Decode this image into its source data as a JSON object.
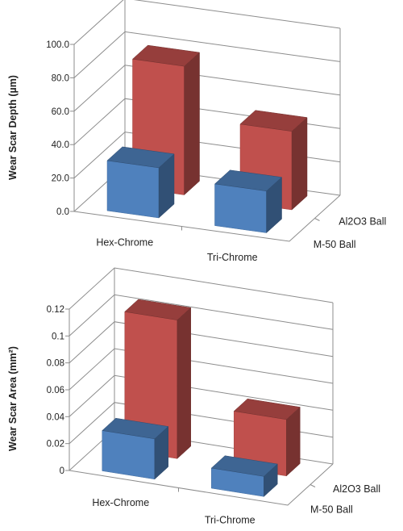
{
  "chart_data": [
    {
      "type": "bar",
      "subtype": "3d-column",
      "categories": [
        "Hex-Chrome",
        "Tri-Chrome"
      ],
      "depth_categories": [
        "M-50 Ball",
        "Al2O3 Ball"
      ],
      "series": [
        {
          "name": "M-50 Ball",
          "color": "#4f81bd",
          "values": [
            30,
            25
          ]
        },
        {
          "name": "Al2O3 Ball",
          "color": "#c0504d",
          "values": [
            77,
            47
          ]
        }
      ],
      "title": "",
      "ylabel": "Wear Scar Depth (µm)",
      "ylim": [
        0,
        100
      ],
      "yticks": [
        "0.0",
        "20.0",
        "40.0",
        "60.0",
        "80.0",
        "100.0"
      ],
      "grid": true,
      "legend": "none"
    },
    {
      "type": "bar",
      "subtype": "3d-column",
      "categories": [
        "Hex-Chrome",
        "Tri-Chrome"
      ],
      "depth_categories": [
        "M-50 Ball",
        "Al2O3 Ball"
      ],
      "series": [
        {
          "name": "M-50 Ball",
          "color": "#4f81bd",
          "values": [
            0.03,
            0.015
          ]
        },
        {
          "name": "Al2O3 Ball",
          "color": "#c0504d",
          "values": [
            0.103,
            0.042
          ]
        }
      ],
      "title": "",
      "ylabel": "Wear Scar Area (mm²)",
      "ylim": [
        0,
        0.12
      ],
      "yticks": [
        "0",
        "0.02",
        "0.04",
        "0.06",
        "0.08",
        "0.1",
        "0.12"
      ],
      "grid": true,
      "legend": "none"
    }
  ]
}
